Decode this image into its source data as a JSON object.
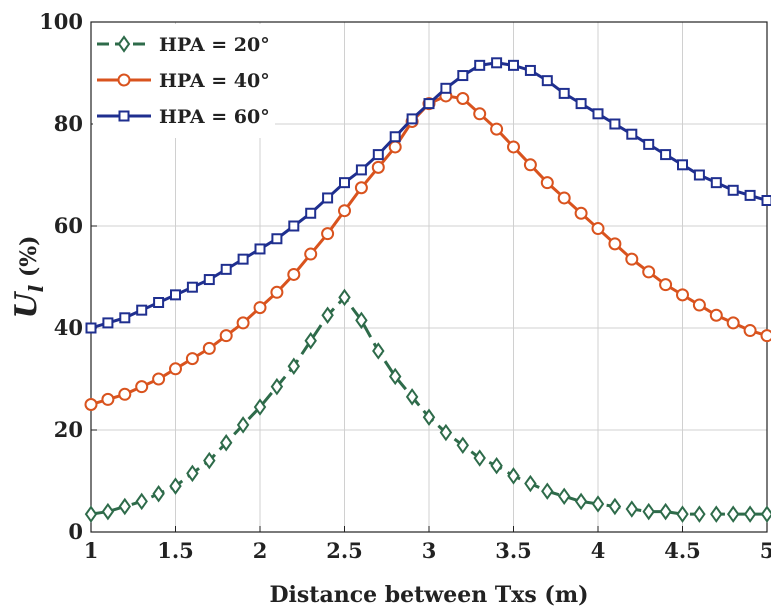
{
  "chart_data": {
    "type": "line",
    "title": "",
    "xlabel": "Distance between Txs (m)",
    "ylabel": "U_l (%)",
    "ylabel_main": "U",
    "ylabel_sub": "l",
    "ylabel_unit": " (%)",
    "xlim": [
      1,
      5
    ],
    "ylim": [
      0,
      100
    ],
    "xticks": [
      1,
      1.5,
      2,
      2.5,
      3,
      3.5,
      4,
      4.5,
      5
    ],
    "xtick_labels": [
      "1",
      "1.5",
      "2",
      "2.5",
      "3",
      "3.5",
      "4",
      "4.5",
      "5"
    ],
    "yticks": [
      0,
      20,
      40,
      60,
      80,
      100
    ],
    "ytick_labels": [
      "0",
      "20",
      "40",
      "60",
      "80",
      "100"
    ],
    "grid": true,
    "legend_position": "top-left",
    "x": [
      1.0,
      1.1,
      1.2,
      1.3,
      1.4,
      1.5,
      1.6,
      1.7,
      1.8,
      1.9,
      2.0,
      2.1,
      2.2,
      2.3,
      2.4,
      2.5,
      2.6,
      2.7,
      2.8,
      2.9,
      3.0,
      3.1,
      3.2,
      3.3,
      3.4,
      3.5,
      3.6,
      3.7,
      3.8,
      3.9,
      4.0,
      4.1,
      4.2,
      4.3,
      4.4,
      4.5,
      4.6,
      4.7,
      4.8,
      4.9,
      5.0
    ],
    "series": [
      {
        "name": "HPA = 20°",
        "color": "#2e6b4a",
        "marker": "diamond",
        "line_style": "dashed",
        "values": [
          3.5,
          4,
          5,
          6,
          7.5,
          9,
          11.5,
          14,
          17.5,
          21,
          24.5,
          28.5,
          32.5,
          37.5,
          42.5,
          46,
          41.5,
          35.5,
          30.5,
          26.5,
          22.5,
          19.5,
          17,
          14.5,
          13,
          11,
          9.5,
          8,
          7,
          6,
          5.5,
          5,
          4.5,
          4,
          4,
          3.5,
          3.5,
          3.5,
          3.5,
          3.5,
          3.5
        ]
      },
      {
        "name": "HPA = 40°",
        "color": "#d9531e",
        "marker": "circle",
        "line_style": "solid",
        "values": [
          25,
          26,
          27,
          28.5,
          30,
          32,
          34,
          36,
          38.5,
          41,
          44,
          47,
          50.5,
          54.5,
          58.5,
          63,
          67.5,
          71.5,
          75.5,
          80.5,
          84,
          85.5,
          85,
          82,
          79,
          75.5,
          72,
          68.5,
          65.5,
          62.5,
          59.5,
          56.5,
          53.5,
          51,
          48.5,
          46.5,
          44.5,
          42.5,
          41,
          39.5,
          38.5
        ]
      },
      {
        "name": "HPA = 60°",
        "color": "#1f2f8f",
        "marker": "square",
        "line_style": "solid",
        "values": [
          40,
          41,
          42,
          43.5,
          45,
          46.5,
          48,
          49.5,
          51.5,
          53.5,
          55.5,
          57.5,
          60,
          62.5,
          65.5,
          68.5,
          71,
          74,
          77.5,
          81,
          84,
          87,
          89.5,
          91.5,
          92,
          91.5,
          90.5,
          88.5,
          86,
          84,
          82,
          80,
          78,
          76,
          74,
          72,
          70,
          68.5,
          67,
          66,
          65
        ]
      }
    ]
  }
}
